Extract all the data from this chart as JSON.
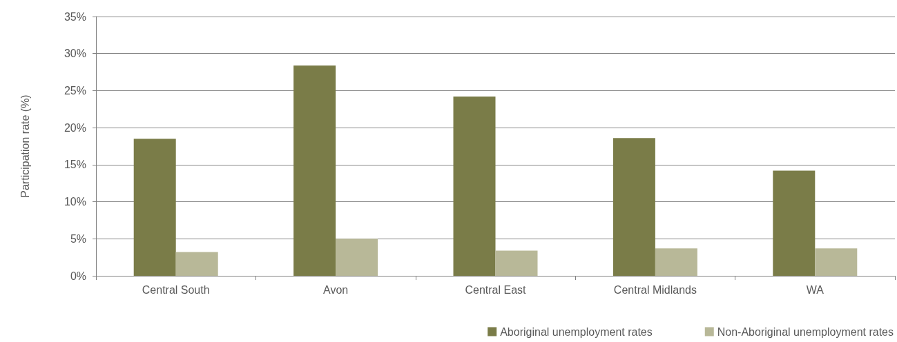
{
  "chart_data": {
    "type": "bar",
    "ylabel": "Participation rate (%)",
    "categories": [
      "Central South",
      "Avon",
      "Central East",
      "Central Midlands",
      "WA"
    ],
    "series": [
      {
        "name": "Aboriginal unemployment rates",
        "color": "#7a7c48",
        "values": [
          18.5,
          28.4,
          24.2,
          18.6,
          14.2
        ]
      },
      {
        "name": "Non-Aboriginal unemployment rates",
        "color": "#b8b898",
        "values": [
          3.2,
          5.0,
          3.4,
          3.7,
          3.7
        ]
      }
    ],
    "ylim": [
      0,
      35
    ],
    "yticks": [
      {
        "value": 0,
        "label": "0%"
      },
      {
        "value": 5,
        "label": "5%"
      },
      {
        "value": 10,
        "label": "10%"
      },
      {
        "value": 15,
        "label": "15%"
      },
      {
        "value": 20,
        "label": "20%"
      },
      {
        "value": 25,
        "label": "25%"
      },
      {
        "value": 30,
        "label": "30%"
      },
      {
        "value": 35,
        "label": "35%"
      }
    ],
    "grid": "y",
    "legend": "bottom right"
  }
}
